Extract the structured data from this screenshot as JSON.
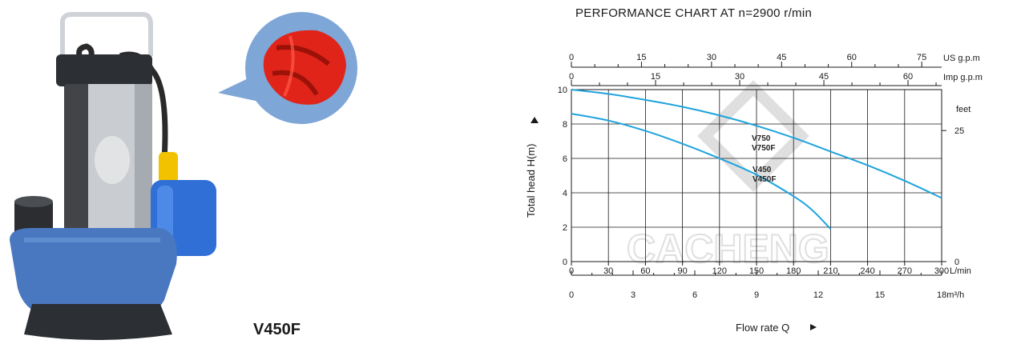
{
  "product": {
    "model_label": "V450F",
    "watermark_brand": "CACHENG"
  },
  "colors": {
    "pump_blue": "#4a78c0",
    "pump_steel": "#c9ccd0",
    "float_switch_body": "#2f6fd6",
    "float_switch_cap": "#f2c200",
    "impeller_red": "#e0241a",
    "callout_bubble": "#7ea6d6",
    "curve_color": "#1ea3dc",
    "grid_color": "#1a1a1a",
    "watermark_color": "#d9d9d9"
  },
  "chart_data": {
    "type": "line",
    "title": "PERFORMANCE CHART AT n=2900 r/min",
    "ylabel": "Total head H(m)",
    "xlabel": "Flow rate Q",
    "ylim": [
      0,
      10
    ],
    "xlim": [
      0,
      300
    ],
    "grid": true,
    "y_ticks": [
      0,
      2,
      4,
      6,
      8,
      10
    ],
    "x_ticks_lmin": [
      0,
      30,
      60,
      90,
      120,
      150,
      180,
      210,
      240,
      270,
      300
    ],
    "x_unit_lmin": "L/min",
    "x_ticks_m3h": [
      0,
      3,
      6,
      9,
      12,
      15
    ],
    "x_end_label_m3h": "18m³/h",
    "top_axis_us": {
      "label": "US g.p.m",
      "ticks": [
        0,
        15,
        30,
        45,
        60,
        75
      ]
    },
    "top_axis_imp": {
      "label": "Imp g.p.m",
      "ticks": [
        0,
        15,
        30,
        45,
        60
      ]
    },
    "right_axis": {
      "unit": "feet",
      "ticks": [
        "25",
        "0"
      ]
    },
    "series": [
      {
        "name": "V750 V750F",
        "label_lines": [
          "V750",
          "V750F"
        ],
        "points": [
          [
            0,
            10
          ],
          [
            30,
            9.75
          ],
          [
            60,
            9.4
          ],
          [
            90,
            9.0
          ],
          [
            120,
            8.5
          ],
          [
            150,
            7.9
          ],
          [
            180,
            7.2
          ],
          [
            210,
            6.4
          ],
          [
            240,
            5.6
          ],
          [
            270,
            4.7
          ],
          [
            300,
            3.7
          ]
        ]
      },
      {
        "name": "V450 V450F",
        "label_lines": [
          "V450",
          "V450F"
        ],
        "points": [
          [
            0,
            8.6
          ],
          [
            30,
            8.2
          ],
          [
            60,
            7.6
          ],
          [
            90,
            6.85
          ],
          [
            120,
            6.0
          ],
          [
            150,
            5.05
          ],
          [
            180,
            3.8
          ],
          [
            195,
            3.0
          ],
          [
            210,
            1.9
          ]
        ]
      }
    ]
  }
}
